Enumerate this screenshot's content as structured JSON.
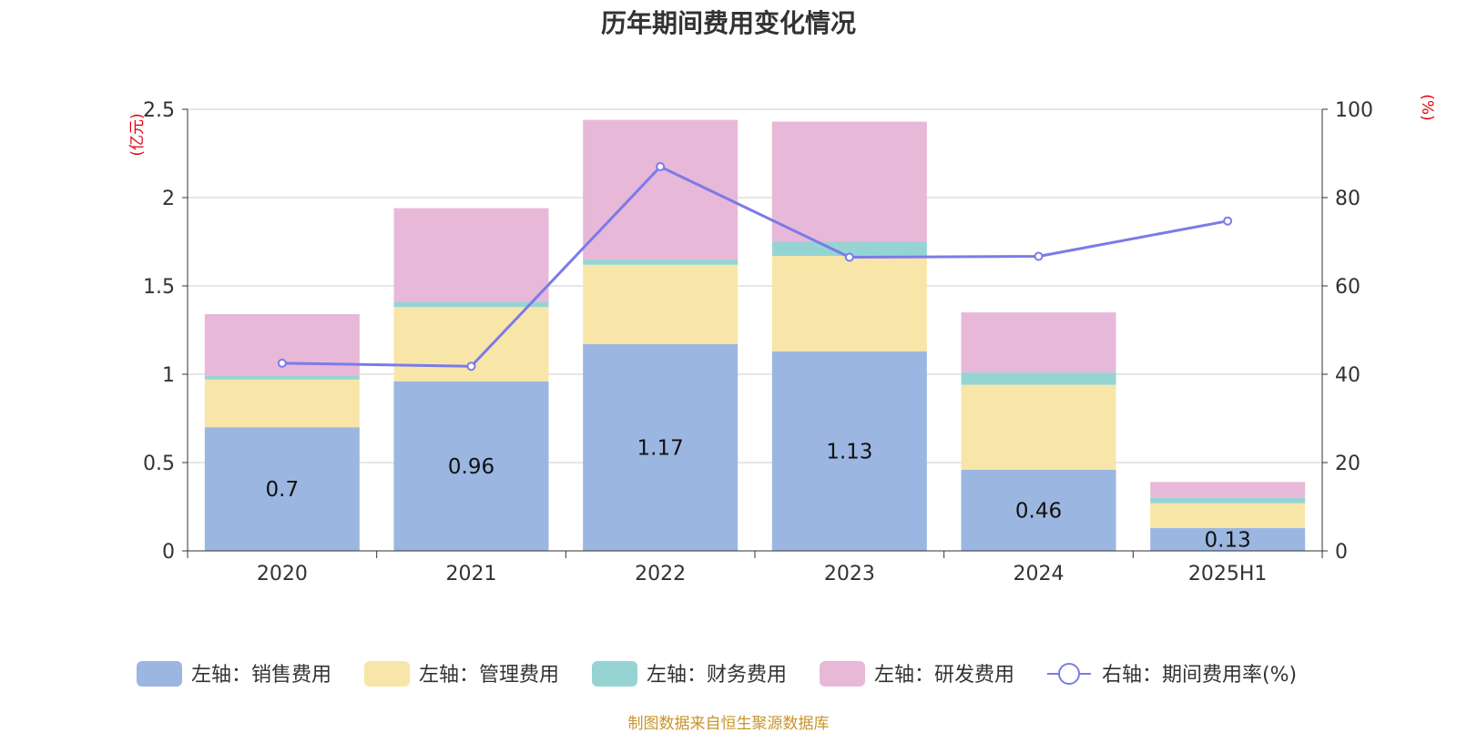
{
  "title": "历年期间费用变化情况",
  "source_note": "制图数据来自恒生聚源数据库",
  "colors": {
    "sales": "#9bb6e0",
    "admin": "#f8e6a8",
    "finance": "#96d4d4",
    "rnd": "#e8b8d8",
    "rate": "#7b7be8",
    "unit": "#e8000b",
    "grid": "#cccccc",
    "axis": "#333333"
  },
  "chart_data": {
    "type": "bar",
    "stacked": true,
    "categories": [
      "2020",
      "2021",
      "2022",
      "2023",
      "2024",
      "2025H1"
    ],
    "left_axis": {
      "unit": "(亿元)",
      "ylim": [
        0,
        2.5
      ],
      "ticks": [
        "0",
        "0.5",
        "1",
        "1.5",
        "2",
        "2.5"
      ]
    },
    "right_axis": {
      "unit": "(%)",
      "ylim": [
        0,
        100
      ],
      "ticks": [
        "0",
        "20",
        "40",
        "60",
        "80",
        "100"
      ]
    },
    "grid": true,
    "legend_position": "bottom",
    "series": [
      {
        "name": "左轴：销售费用",
        "key": "sales",
        "axis": "left",
        "values": [
          0.7,
          0.96,
          1.17,
          1.13,
          0.46,
          0.13
        ],
        "labels": [
          "0.7",
          "0.96",
          "1.17",
          "1.13",
          "0.46",
          "0.13"
        ]
      },
      {
        "name": "左轴：管理费用",
        "key": "admin",
        "axis": "left",
        "values": [
          0.27,
          0.42,
          0.45,
          0.54,
          0.48,
          0.14
        ]
      },
      {
        "name": "左轴：财务费用",
        "key": "finance",
        "axis": "left",
        "values": [
          0.02,
          0.03,
          0.03,
          0.08,
          0.07,
          0.03
        ]
      },
      {
        "name": "左轴：研发费用",
        "key": "rnd",
        "axis": "left",
        "values": [
          0.35,
          0.53,
          0.79,
          0.68,
          0.34,
          0.09
        ]
      },
      {
        "name": "右轴：期间费用率(%)",
        "key": "rate",
        "axis": "right",
        "type": "line",
        "values": [
          42.5,
          41.8,
          87.0,
          66.5,
          66.7,
          74.7
        ]
      }
    ]
  }
}
